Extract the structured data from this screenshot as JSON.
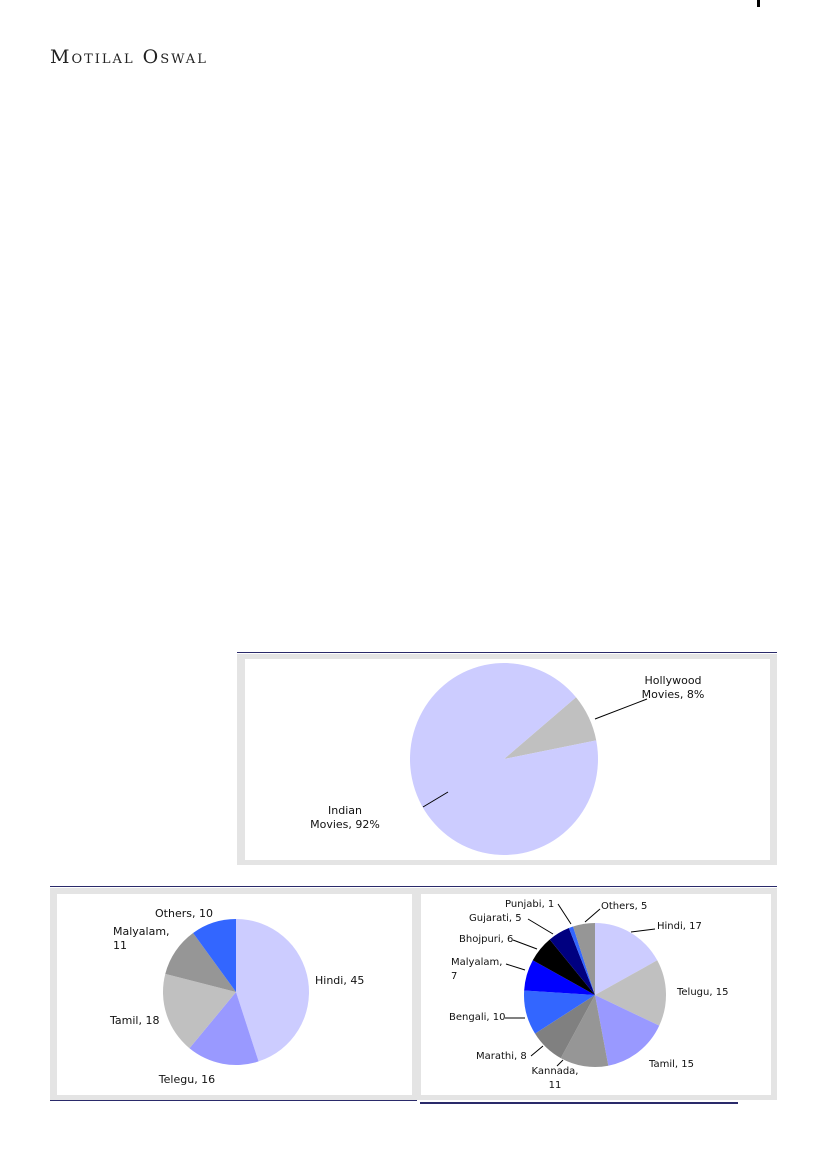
{
  "header": {
    "brand": "Motilal Oswal"
  },
  "chart_data": [
    {
      "type": "pie",
      "categories": [
        "Hollywood Movies",
        "Indian Movies"
      ],
      "values": [
        8,
        92
      ],
      "labels": [
        "Hollywood\nMovies, 8%",
        "Indian\nMovies, 92%"
      ],
      "colors": [
        "#c0c0c0",
        "#ccccff"
      ],
      "legend": "none"
    },
    {
      "type": "pie",
      "categories": [
        "Hindi",
        "Telegu",
        "Tamil",
        "Malyalam",
        "Others"
      ],
      "values": [
        45,
        16,
        18,
        11,
        10
      ],
      "labels": [
        "Hindi, 45",
        "Telegu, 16",
        "Tamil, 18",
        "Malyalam,\n11",
        "Others, 10"
      ],
      "colors": [
        "#ccccff",
        "#9999ff",
        "#c0c0c0",
        "#969696",
        "#3366ff"
      ],
      "legend": "none"
    },
    {
      "type": "pie",
      "categories": [
        "Hindi",
        "Telugu",
        "Tamil",
        "Kannada",
        "Marathi",
        "Bengali",
        "Malyalam",
        "Bhojpuri",
        "Gujarati",
        "Punjabi",
        "Others"
      ],
      "values": [
        17,
        15,
        15,
        11,
        8,
        10,
        7,
        6,
        5,
        1,
        5
      ],
      "labels": [
        "Hindi, 17",
        "Telugu, 15",
        "Tamil, 15",
        "Kannada,\n11",
        "Marathi, 8",
        "Bengali, 10",
        "Malyalam,\n7",
        "Bhojpuri, 6",
        "Gujarati, 5",
        "Punjabi, 1",
        "Others, 5"
      ],
      "colors": [
        "#ccccff",
        "#c0c0c0",
        "#9999ff",
        "#969696",
        "#808080",
        "#3366ff",
        "#0000ff",
        "#000000",
        "#000080",
        "#3366ff",
        "#969696"
      ],
      "legend": "none"
    }
  ]
}
